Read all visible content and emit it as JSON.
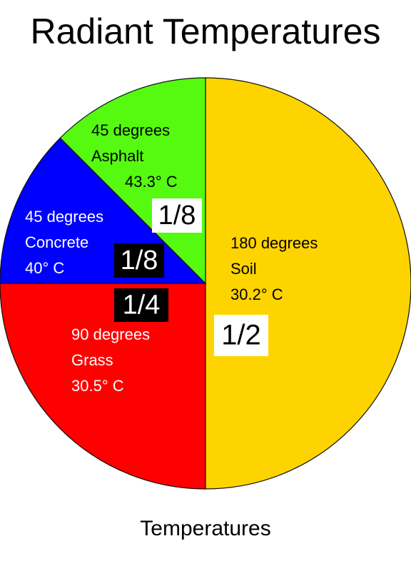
{
  "chart_data": {
    "type": "pie",
    "title": "Radiant Temperatures",
    "caption": "Temperatures",
    "slices": [
      {
        "category": "Soil",
        "degrees_label": "180 degrees",
        "temperature": "30.2° C",
        "fraction": "1/2",
        "value": 180,
        "color": "#fed400",
        "label_color": "#000000",
        "fraction_style": "light"
      },
      {
        "category": "Grass",
        "degrees_label": "90 degrees",
        "temperature": "30.5° C",
        "fraction": "1/4",
        "value": 90,
        "color": "#fe0000",
        "label_color": "#ffffff",
        "fraction_style": "dark"
      },
      {
        "category": "Concrete",
        "degrees_label": "45 degrees",
        "temperature": "40° C",
        "fraction": "1/8",
        "value": 45,
        "color": "#0000fe",
        "label_color": "#ffffff",
        "fraction_style": "dark"
      },
      {
        "category": "Asphalt",
        "degrees_label": "45 degrees",
        "temperature": "43.3° C",
        "fraction": "1/8",
        "value": 45,
        "color": "#55fa10",
        "label_color": "#000000",
        "fraction_style": "light"
      }
    ]
  }
}
